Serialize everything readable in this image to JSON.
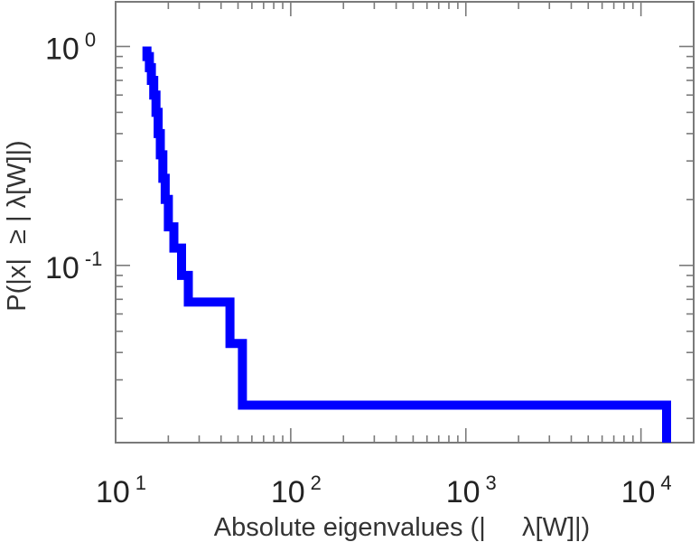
{
  "chart_data": {
    "type": "line",
    "subtype": "step (complementary cumulative distribution)",
    "title": "",
    "xlabel": "Absolute eigenvalues (|     λ[W]|)",
    "ylabel": "P(|x|  ≥ | λ[W]|)",
    "xscale": "log",
    "yscale": "log",
    "xlim": [
      10,
      20000
    ],
    "ylim": [
      0.0155,
      1.6
    ],
    "grid": false,
    "legend": "none",
    "x_ticks": [
      {
        "value": 10,
        "base": "10",
        "exp": "1"
      },
      {
        "value": 100,
        "base": "10",
        "exp": "2"
      },
      {
        "value": 1000,
        "base": "10",
        "exp": "3"
      },
      {
        "value": 10000,
        "base": "10",
        "exp": "4"
      }
    ],
    "y_ticks": [
      {
        "value": 1,
        "base": "10",
        "exp": "0"
      },
      {
        "value": 0.1,
        "base": "10",
        "exp": "-1"
      }
    ],
    "series": [
      {
        "color": "#0000ff",
        "x": [
          15.1,
          15.1,
          15.6,
          15.6,
          16.0,
          16.0,
          16.5,
          16.5,
          17.0,
          17.0,
          17.5,
          17.5,
          18.0,
          18.0,
          18.6,
          18.6,
          19.2,
          19.2,
          20.0,
          20.0,
          21.5,
          21.5,
          23.8,
          23.8,
          26.0,
          26.0,
          45.0,
          45.0,
          50.0,
          50.0,
          53.0,
          53.0,
          14000,
          14000
        ],
        "y": [
          1.0,
          0.9,
          0.9,
          0.8,
          0.8,
          0.7,
          0.7,
          0.6,
          0.6,
          0.5,
          0.5,
          0.4,
          0.4,
          0.32,
          0.32,
          0.25,
          0.25,
          0.2,
          0.2,
          0.15,
          0.15,
          0.12,
          0.12,
          0.09,
          0.09,
          0.068,
          0.068,
          0.044,
          0.044,
          0.044,
          0.044,
          0.023,
          0.023,
          0.0155
        ]
      }
    ]
  }
}
